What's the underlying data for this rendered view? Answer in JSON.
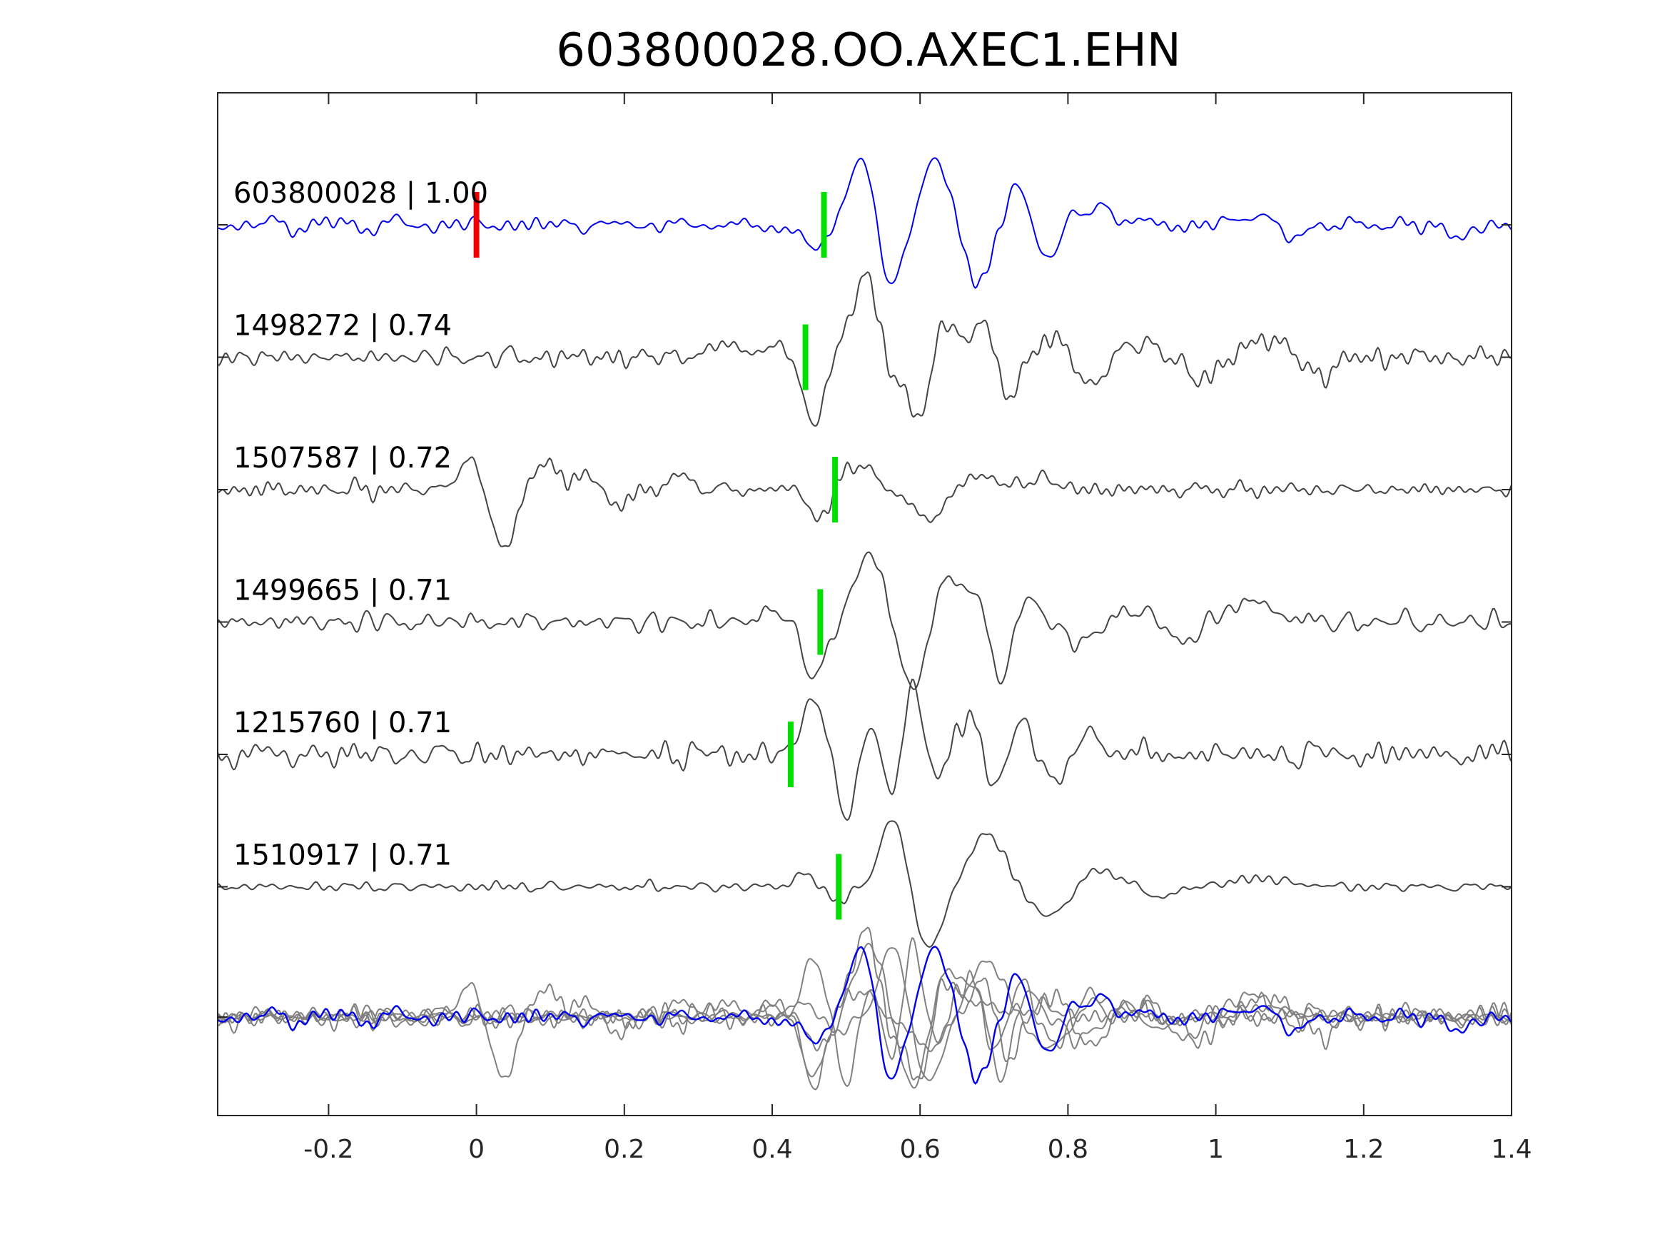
{
  "chart_data": {
    "type": "line",
    "title": "603800028.OO.AXEC1.EHN",
    "xlabel": "",
    "ylabel": "",
    "xlim": [
      -0.35,
      1.4
    ],
    "xticks": [
      "-0.2",
      "0",
      "0.2",
      "0.4",
      "0.6",
      "0.8",
      "1",
      "1.2",
      "1.4"
    ],
    "xtick_values": [
      -0.2,
      0,
      0.2,
      0.4,
      0.6,
      0.8,
      1.0,
      1.2,
      1.4
    ],
    "grid": false,
    "colors": {
      "master": "#0000ee",
      "other": "#444444",
      "stack_other": "#808080",
      "pick": "#00e000",
      "origin": "#ee0000",
      "axis": "#262626"
    },
    "origin_marker_x": 0.0,
    "series": [
      {
        "label": "603800028 | 1.00",
        "id": "603800028",
        "correlation": 1.0,
        "color": "master",
        "pick_x": 0.47,
        "noise_amp": 0.07,
        "noise_seed": 11,
        "events": [
          [
            0.415,
            -0.05,
            0.02
          ],
          [
            0.455,
            -0.35,
            0.014
          ],
          [
            0.52,
            1.0,
            0.016
          ],
          [
            0.56,
            -0.85,
            0.016
          ],
          [
            0.62,
            0.95,
            0.017
          ],
          [
            0.68,
            -0.85,
            0.016
          ],
          [
            0.73,
            0.55,
            0.013
          ],
          [
            0.775,
            -0.45,
            0.014
          ],
          [
            0.82,
            0.15,
            0.02
          ],
          [
            0.855,
            0.2,
            0.018
          ],
          [
            1.055,
            0.22,
            0.015
          ],
          [
            1.1,
            -0.22,
            0.015
          ],
          [
            1.33,
            -0.2,
            0.015
          ]
        ]
      },
      {
        "label": "1498272 | 0.74",
        "id": "1498272",
        "correlation": 0.74,
        "color": "other",
        "pick_x": 0.445,
        "noise_amp": 0.08,
        "noise_seed": 23,
        "events": [
          [
            0.33,
            0.18,
            0.02
          ],
          [
            0.4,
            0.18,
            0.02
          ],
          [
            0.455,
            -1.0,
            0.014
          ],
          [
            0.51,
            0.45,
            0.016
          ],
          [
            0.53,
            0.95,
            0.014
          ],
          [
            0.57,
            -0.35,
            0.014
          ],
          [
            0.6,
            -0.85,
            0.013
          ],
          [
            0.635,
            0.55,
            0.014
          ],
          [
            0.685,
            0.6,
            0.013
          ],
          [
            0.72,
            -0.6,
            0.014
          ],
          [
            0.78,
            0.3,
            0.018
          ],
          [
            0.83,
            -0.45,
            0.016
          ],
          [
            0.9,
            0.2,
            0.025
          ],
          [
            0.98,
            -0.35,
            0.02
          ],
          [
            1.07,
            0.25,
            0.03
          ],
          [
            1.14,
            -0.3,
            0.018
          ]
        ]
      },
      {
        "label": "1507587 | 0.72",
        "id": "1507587",
        "correlation": 0.72,
        "color": "other",
        "pick_x": 0.485,
        "noise_amp": 0.07,
        "noise_seed": 37,
        "events": [
          [
            -0.005,
            0.45,
            0.018
          ],
          [
            0.035,
            -0.95,
            0.016
          ],
          [
            0.09,
            0.4,
            0.016
          ],
          [
            0.15,
            0.22,
            0.02
          ],
          [
            0.19,
            -0.28,
            0.015
          ],
          [
            0.275,
            0.22,
            0.014
          ],
          [
            0.465,
            -0.45,
            0.013
          ],
          [
            0.515,
            0.38,
            0.02
          ],
          [
            0.61,
            -0.45,
            0.02
          ],
          [
            0.68,
            0.22,
            0.02
          ],
          [
            0.76,
            0.18,
            0.02
          ]
        ]
      },
      {
        "label": "1499665 | 0.71",
        "id": "1499665",
        "correlation": 0.71,
        "color": "other",
        "pick_x": 0.465,
        "noise_amp": 0.07,
        "noise_seed": 51,
        "events": [
          [
            0.41,
            0.2,
            0.02
          ],
          [
            0.455,
            -0.85,
            0.016
          ],
          [
            0.51,
            0.35,
            0.012
          ],
          [
            0.535,
            1.0,
            0.014
          ],
          [
            0.59,
            -0.95,
            0.016
          ],
          [
            0.635,
            0.65,
            0.014
          ],
          [
            0.67,
            0.45,
            0.014
          ],
          [
            0.71,
            -0.85,
            0.013
          ],
          [
            0.745,
            0.35,
            0.015
          ],
          [
            0.815,
            -0.3,
            0.02
          ],
          [
            0.89,
            0.18,
            0.02
          ],
          [
            0.955,
            -0.32,
            0.016
          ],
          [
            1.05,
            0.3,
            0.03
          ]
        ]
      },
      {
        "label": "1215760 | 0.71",
        "id": "1215760",
        "correlation": 0.71,
        "color": "other",
        "pick_x": 0.425,
        "noise_amp": 0.1,
        "noise_seed": 67,
        "events": [
          [
            0.455,
            0.85,
            0.014
          ],
          [
            0.5,
            -0.85,
            0.013
          ],
          [
            0.535,
            0.45,
            0.012
          ],
          [
            0.56,
            -0.65,
            0.012
          ],
          [
            0.59,
            1.1,
            0.011
          ],
          [
            0.625,
            -0.35,
            0.012
          ],
          [
            0.645,
            0.25,
            0.012
          ],
          [
            0.67,
            0.45,
            0.011
          ],
          [
            0.705,
            -0.45,
            0.012
          ],
          [
            0.735,
            0.55,
            0.012
          ],
          [
            0.785,
            -0.4,
            0.015
          ],
          [
            0.83,
            0.35,
            0.015
          ]
        ]
      },
      {
        "label": "1510917 | 0.71",
        "id": "1510917",
        "correlation": 0.71,
        "color": "other",
        "pick_x": 0.49,
        "noise_amp": 0.04,
        "noise_seed": 83,
        "events": [
          [
            0.445,
            0.18,
            0.015
          ],
          [
            0.49,
            -0.25,
            0.013
          ],
          [
            0.565,
            1.05,
            0.018
          ],
          [
            0.61,
            -0.95,
            0.02
          ],
          [
            0.69,
            0.75,
            0.025
          ],
          [
            0.775,
            -0.45,
            0.025
          ],
          [
            0.845,
            0.25,
            0.03
          ],
          [
            0.92,
            -0.15,
            0.025
          ],
          [
            1.06,
            0.12,
            0.04
          ]
        ]
      }
    ],
    "stack": {
      "description_label": "",
      "members": [
        "603800028",
        "1498272",
        "1507587",
        "1499665",
        "1215760",
        "1510917"
      ]
    }
  }
}
